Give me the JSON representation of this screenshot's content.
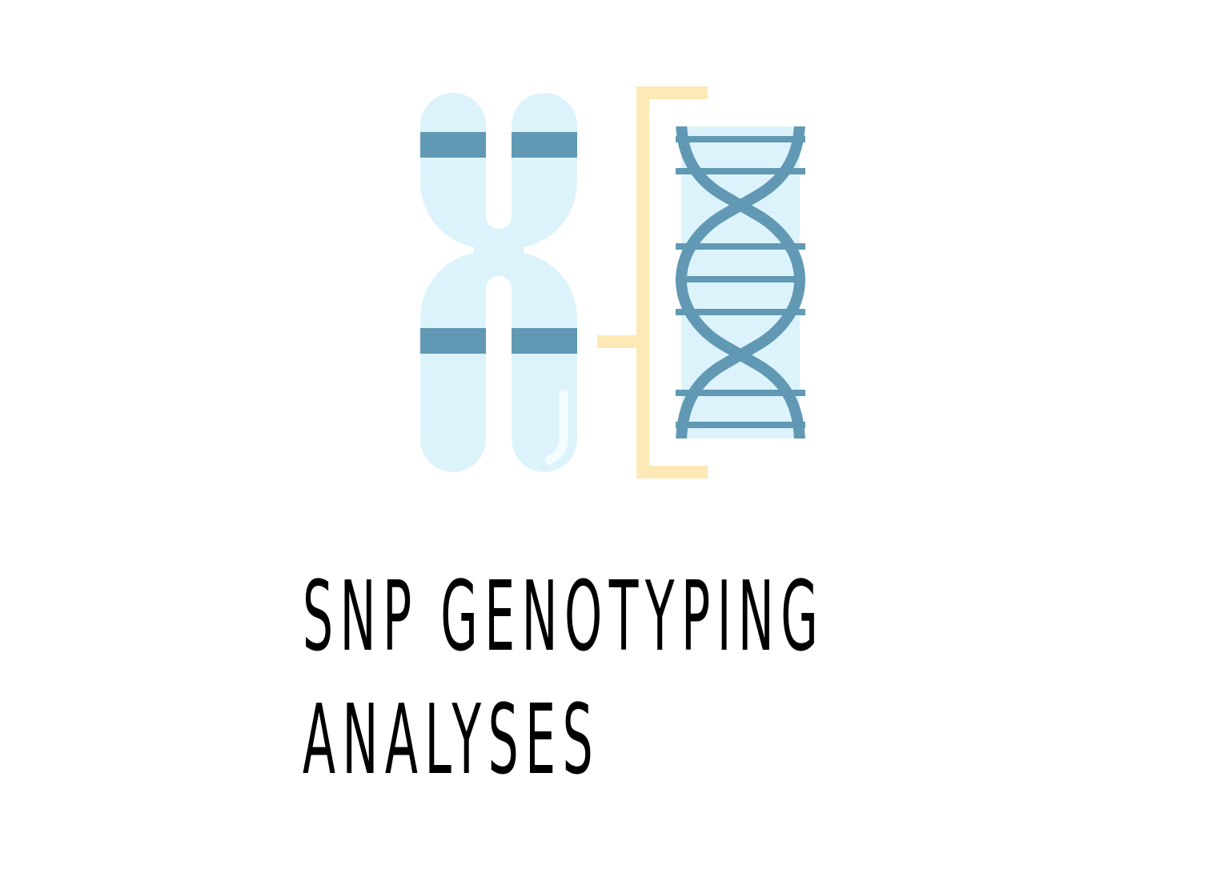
{
  "title": {
    "line1": "SNP GENOTYPING",
    "line2": "ANALYSES"
  },
  "icons": {
    "chromosome": "chromosome-icon",
    "bracket": "bracket-icon",
    "dna": "dna-helix-icon"
  },
  "colors": {
    "chromosome_fill": "#DDF3FC",
    "band": "#6199B4",
    "bracket": "#FCE9B6",
    "highlight": "#F4FCFE",
    "text": "#000000",
    "background": "#FFFFFF"
  }
}
